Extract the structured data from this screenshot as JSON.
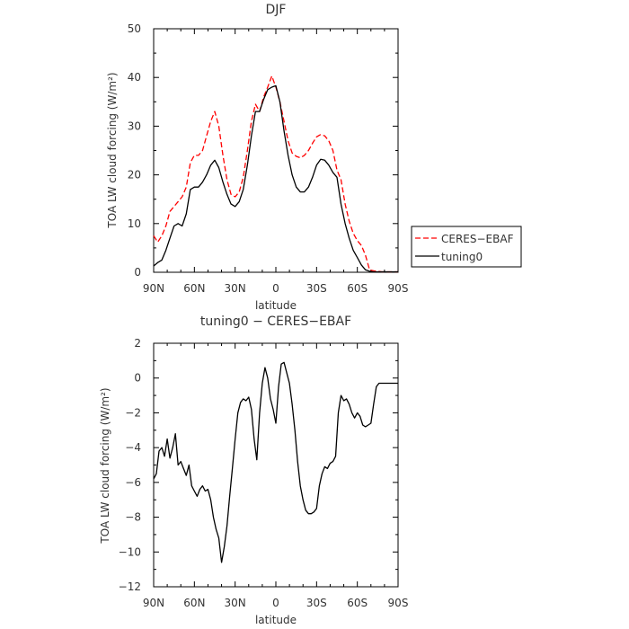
{
  "chart_data": [
    {
      "type": "line",
      "title": "DJF",
      "xlabel": "latitude",
      "ylabel": "TOA LW cloud forcing (W/m²)",
      "xlim": [
        90,
        -90
      ],
      "ylim": [
        0,
        50
      ],
      "x_ticks": [
        90,
        60,
        30,
        0,
        -30,
        -60,
        -90
      ],
      "x_tick_labels": [
        "90N",
        "60N",
        "30N",
        "0",
        "30S",
        "60S",
        "90S"
      ],
      "y_ticks": [
        0,
        10,
        20,
        30,
        40,
        50
      ],
      "y_tick_labels": [
        "0",
        "10",
        "20",
        "30",
        "40",
        "50"
      ],
      "legend": {
        "placement": "right"
      },
      "series": [
        {
          "name": "CERES−EBAF",
          "color": "#ff0000",
          "dash": "dashed",
          "x": [
            90,
            87,
            84,
            81,
            78,
            75,
            72,
            69,
            66,
            63,
            60,
            57,
            54,
            51,
            48,
            45,
            42,
            39,
            36,
            33,
            30,
            27,
            24,
            21,
            18,
            15,
            12,
            9,
            6,
            3,
            0,
            -3,
            -6,
            -9,
            -12,
            -15,
            -18,
            -21,
            -24,
            -27,
            -30,
            -33,
            -36,
            -39,
            -42,
            -45,
            -48,
            -51,
            -54,
            -57,
            -60,
            -63,
            -66,
            -69,
            -72,
            -75,
            -78,
            -81,
            -84,
            -87,
            -90
          ],
          "y": [
            7.5,
            6.2,
            7.5,
            9.5,
            12.5,
            13.5,
            14.5,
            15.5,
            17.5,
            22.5,
            24.0,
            24.0,
            25.0,
            28.0,
            31.0,
            33.0,
            30.0,
            24.0,
            19.0,
            16.0,
            15.5,
            16.5,
            19.5,
            25.0,
            31.0,
            34.5,
            33.0,
            36.0,
            38.0,
            40.3,
            38.0,
            35.0,
            31.0,
            27.0,
            24.5,
            23.8,
            23.5,
            24.0,
            25.0,
            26.5,
            27.8,
            28.3,
            28.0,
            27.0,
            25.0,
            21.0,
            19.0,
            14.0,
            10.5,
            8.0,
            6.5,
            5.5,
            3.5,
            0.5,
            0.3,
            0.2,
            0.1,
            0.1,
            0.1,
            0.1,
            0.1
          ]
        },
        {
          "name": "tuning0",
          "color": "#000000",
          "dash": "solid",
          "x": [
            90,
            87,
            84,
            81,
            78,
            75,
            72,
            69,
            66,
            63,
            60,
            57,
            54,
            51,
            48,
            45,
            42,
            39,
            36,
            33,
            30,
            27,
            24,
            21,
            18,
            15,
            12,
            9,
            6,
            3,
            0,
            -3,
            -6,
            -9,
            -12,
            -15,
            -18,
            -21,
            -24,
            -27,
            -30,
            -33,
            -36,
            -39,
            -42,
            -45,
            -48,
            -51,
            -54,
            -57,
            -60,
            -63,
            -66,
            -69,
            -72,
            -75,
            -78,
            -81,
            -84,
            -87,
            -90
          ],
          "y": [
            1.3,
            2.0,
            2.5,
            4.5,
            7.0,
            9.5,
            10.0,
            9.5,
            12.0,
            17.0,
            17.5,
            17.5,
            18.5,
            20.0,
            22.0,
            23.0,
            21.5,
            18.5,
            16.0,
            14.0,
            13.5,
            14.5,
            17.0,
            22.0,
            28.0,
            33.0,
            33.0,
            35.5,
            37.5,
            38.0,
            38.3,
            35.0,
            29.0,
            24.0,
            20.0,
            17.5,
            16.5,
            16.5,
            17.5,
            19.5,
            22.0,
            23.2,
            23.0,
            22.0,
            20.5,
            19.5,
            14.0,
            10.0,
            7.0,
            4.5,
            3.0,
            1.5,
            0.5,
            0.2,
            0.1,
            0.1,
            0.1,
            0.1,
            0.1,
            0.1,
            0.1
          ]
        }
      ]
    },
    {
      "type": "line",
      "title": "tuning0 − CERES−EBAF",
      "xlabel": "latitude",
      "ylabel": "TOA LW cloud forcing (W/m²)",
      "xlim": [
        90,
        -90
      ],
      "ylim": [
        -12,
        2
      ],
      "x_ticks": [
        90,
        60,
        30,
        0,
        -30,
        -60,
        -90
      ],
      "x_tick_labels": [
        "90N",
        "60N",
        "30N",
        "0",
        "30S",
        "60S",
        "90S"
      ],
      "y_ticks": [
        -12,
        -10,
        -8,
        -6,
        -4,
        -2,
        0,
        2
      ],
      "y_tick_labels": [
        "−12",
        "−10",
        "−8",
        "−6",
        "−4",
        "−2",
        "0",
        "2"
      ],
      "series": [
        {
          "color": "#000000",
          "dash": "solid",
          "x": [
            90,
            88,
            86,
            84,
            82,
            80,
            78,
            76,
            74,
            72,
            70,
            68,
            66,
            64,
            62,
            60,
            58,
            56,
            54,
            52,
            50,
            48,
            46,
            44,
            42,
            40,
            38,
            36,
            34,
            32,
            30,
            28,
            26,
            24,
            22,
            20,
            18,
            16,
            14,
            12,
            10,
            8,
            6,
            4,
            2,
            0,
            -2,
            -4,
            -6,
            -8,
            -10,
            -12,
            -14,
            -16,
            -18,
            -20,
            -22,
            -24,
            -26,
            -28,
            -30,
            -32,
            -34,
            -36,
            -38,
            -40,
            -42,
            -44,
            -46,
            -48,
            -50,
            -52,
            -54,
            -56,
            -58,
            -60,
            -62,
            -64,
            -66,
            -68,
            -70,
            -72,
            -74,
            -76,
            -78,
            -80,
            -82,
            -84,
            -86,
            -88,
            -90
          ],
          "y": [
            -5.8,
            -5.5,
            -4.2,
            -4.0,
            -4.5,
            -3.5,
            -4.6,
            -4.0,
            -3.2,
            -5.0,
            -4.8,
            -5.2,
            -5.6,
            -5.0,
            -6.2,
            -6.5,
            -6.8,
            -6.4,
            -6.2,
            -6.5,
            -6.4,
            -7.0,
            -8.0,
            -8.7,
            -9.2,
            -10.6,
            -9.7,
            -8.5,
            -6.8,
            -5.2,
            -3.5,
            -2.0,
            -1.4,
            -1.2,
            -1.3,
            -1.1,
            -1.8,
            -3.5,
            -4.7,
            -2.0,
            -0.3,
            0.6,
            0.0,
            -1.2,
            -1.8,
            -2.6,
            -0.5,
            0.8,
            0.9,
            0.3,
            -0.3,
            -1.5,
            -3.0,
            -4.8,
            -6.2,
            -7.0,
            -7.6,
            -7.8,
            -7.8,
            -7.7,
            -7.5,
            -6.2,
            -5.5,
            -5.1,
            -5.2,
            -4.9,
            -4.8,
            -4.5,
            -2.0,
            -1.0,
            -1.3,
            -1.2,
            -1.5,
            -2.0,
            -2.3,
            -2.0,
            -2.2,
            -2.7,
            -2.8,
            -2.7,
            -2.6,
            -1.5,
            -0.5,
            -0.3,
            -0.3,
            -0.3,
            -0.3,
            -0.3,
            -0.3,
            -0.3,
            -0.3
          ]
        }
      ]
    }
  ]
}
